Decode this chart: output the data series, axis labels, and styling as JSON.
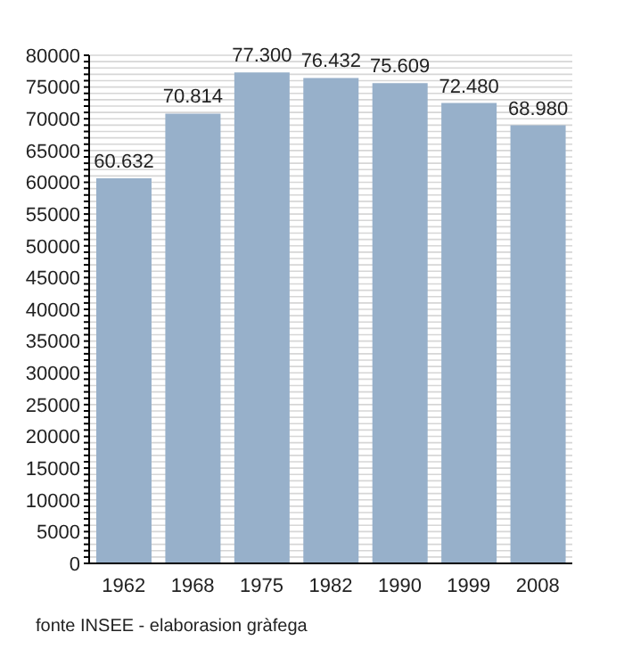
{
  "chart_data": {
    "type": "bar",
    "categories": [
      "1962",
      "1968",
      "1975",
      "1982",
      "1990",
      "1999",
      "2008"
    ],
    "values": [
      60632,
      70814,
      77300,
      76432,
      75609,
      72480,
      68980
    ],
    "value_labels": [
      "60.632",
      "70.814",
      "77.300",
      "76.432",
      "75.609",
      "72.480",
      "68.980"
    ],
    "color": "#97b0ca",
    "ylim": [
      0,
      80000
    ],
    "yticks": [
      0,
      {
        "value": 1000,
        "label": null
      },
      {
        "value": 2000,
        "label": null
      },
      {
        "value": 3000,
        "label": null
      },
      {
        "value": 4000,
        "label": null
      },
      5000,
      {
        "value": 6000,
        "label": null
      },
      {
        "value": 7000,
        "label": null
      },
      {
        "value": 8000,
        "label": null
      },
      {
        "value": 9000,
        "label": null
      },
      10000,
      {
        "value": 11000,
        "label": null
      },
      {
        "value": 12000,
        "label": null
      },
      {
        "value": 13000,
        "label": null
      },
      {
        "value": 14000,
        "label": null
      },
      15000,
      {
        "value": 16000,
        "label": null
      },
      {
        "value": 17000,
        "label": null
      },
      {
        "value": 18000,
        "label": null
      },
      {
        "value": 19000,
        "label": null
      },
      20000,
      {
        "value": 21000,
        "label": null
      },
      {
        "value": 22000,
        "label": null
      },
      {
        "value": 23000,
        "label": null
      },
      {
        "value": 24000,
        "label": null
      },
      25000,
      {
        "value": 26000,
        "label": null
      },
      {
        "value": 27000,
        "label": null
      },
      {
        "value": 28000,
        "label": null
      },
      {
        "value": 29000,
        "label": null
      },
      30000,
      {
        "value": 31000,
        "label": null
      },
      {
        "value": 32000,
        "label": null
      },
      {
        "value": 33000,
        "label": null
      },
      {
        "value": 34000,
        "label": null
      },
      35000,
      {
        "value": 36000,
        "label": null
      },
      {
        "value": 37000,
        "label": null
      },
      {
        "value": 38000,
        "label": null
      },
      {
        "value": 39000,
        "label": null
      },
      40000,
      {
        "value": 41000,
        "label": null
      },
      {
        "value": 42000,
        "label": null
      },
      {
        "value": 43000,
        "label": null
      },
      {
        "value": 44000,
        "label": null
      },
      45000,
      {
        "value": 46000,
        "label": null
      },
      {
        "value": 47000,
        "label": null
      },
      {
        "value": 48000,
        "label": null
      },
      {
        "value": 49000,
        "label": null
      },
      50000,
      {
        "value": 51000,
        "label": null
      },
      {
        "value": 52000,
        "label": null
      },
      {
        "value": 53000,
        "label": null
      },
      {
        "value": 54000,
        "label": null
      },
      55000,
      {
        "value": 56000,
        "label": null
      },
      {
        "value": 57000,
        "label": null
      },
      {
        "value": 58000,
        "label": null
      },
      {
        "value": 59000,
        "label": null
      },
      60000,
      {
        "value": 61000,
        "label": null
      },
      {
        "value": 62000,
        "label": null
      },
      {
        "value": 63000,
        "label": null
      },
      {
        "value": 64000,
        "label": null
      },
      65000,
      {
        "value": 66000,
        "label": null
      },
      {
        "value": 67000,
        "label": null
      },
      {
        "value": 68000,
        "label": null
      },
      {
        "value": 69000,
        "label": null
      },
      70000,
      {
        "value": 71000,
        "label": null
      },
      {
        "value": 72000,
        "label": null
      },
      {
        "value": 73000,
        "label": null
      },
      {
        "value": 74000,
        "label": null
      },
      75000,
      {
        "value": 76000,
        "label": null
      },
      {
        "value": 77000,
        "label": null
      },
      {
        "value": 78000,
        "label": null
      },
      {
        "value": 79000,
        "label": null
      },
      80000
    ],
    "grid": "y",
    "annotations": [
      "fonte INSEE - elaborasion gràfega"
    ]
  }
}
